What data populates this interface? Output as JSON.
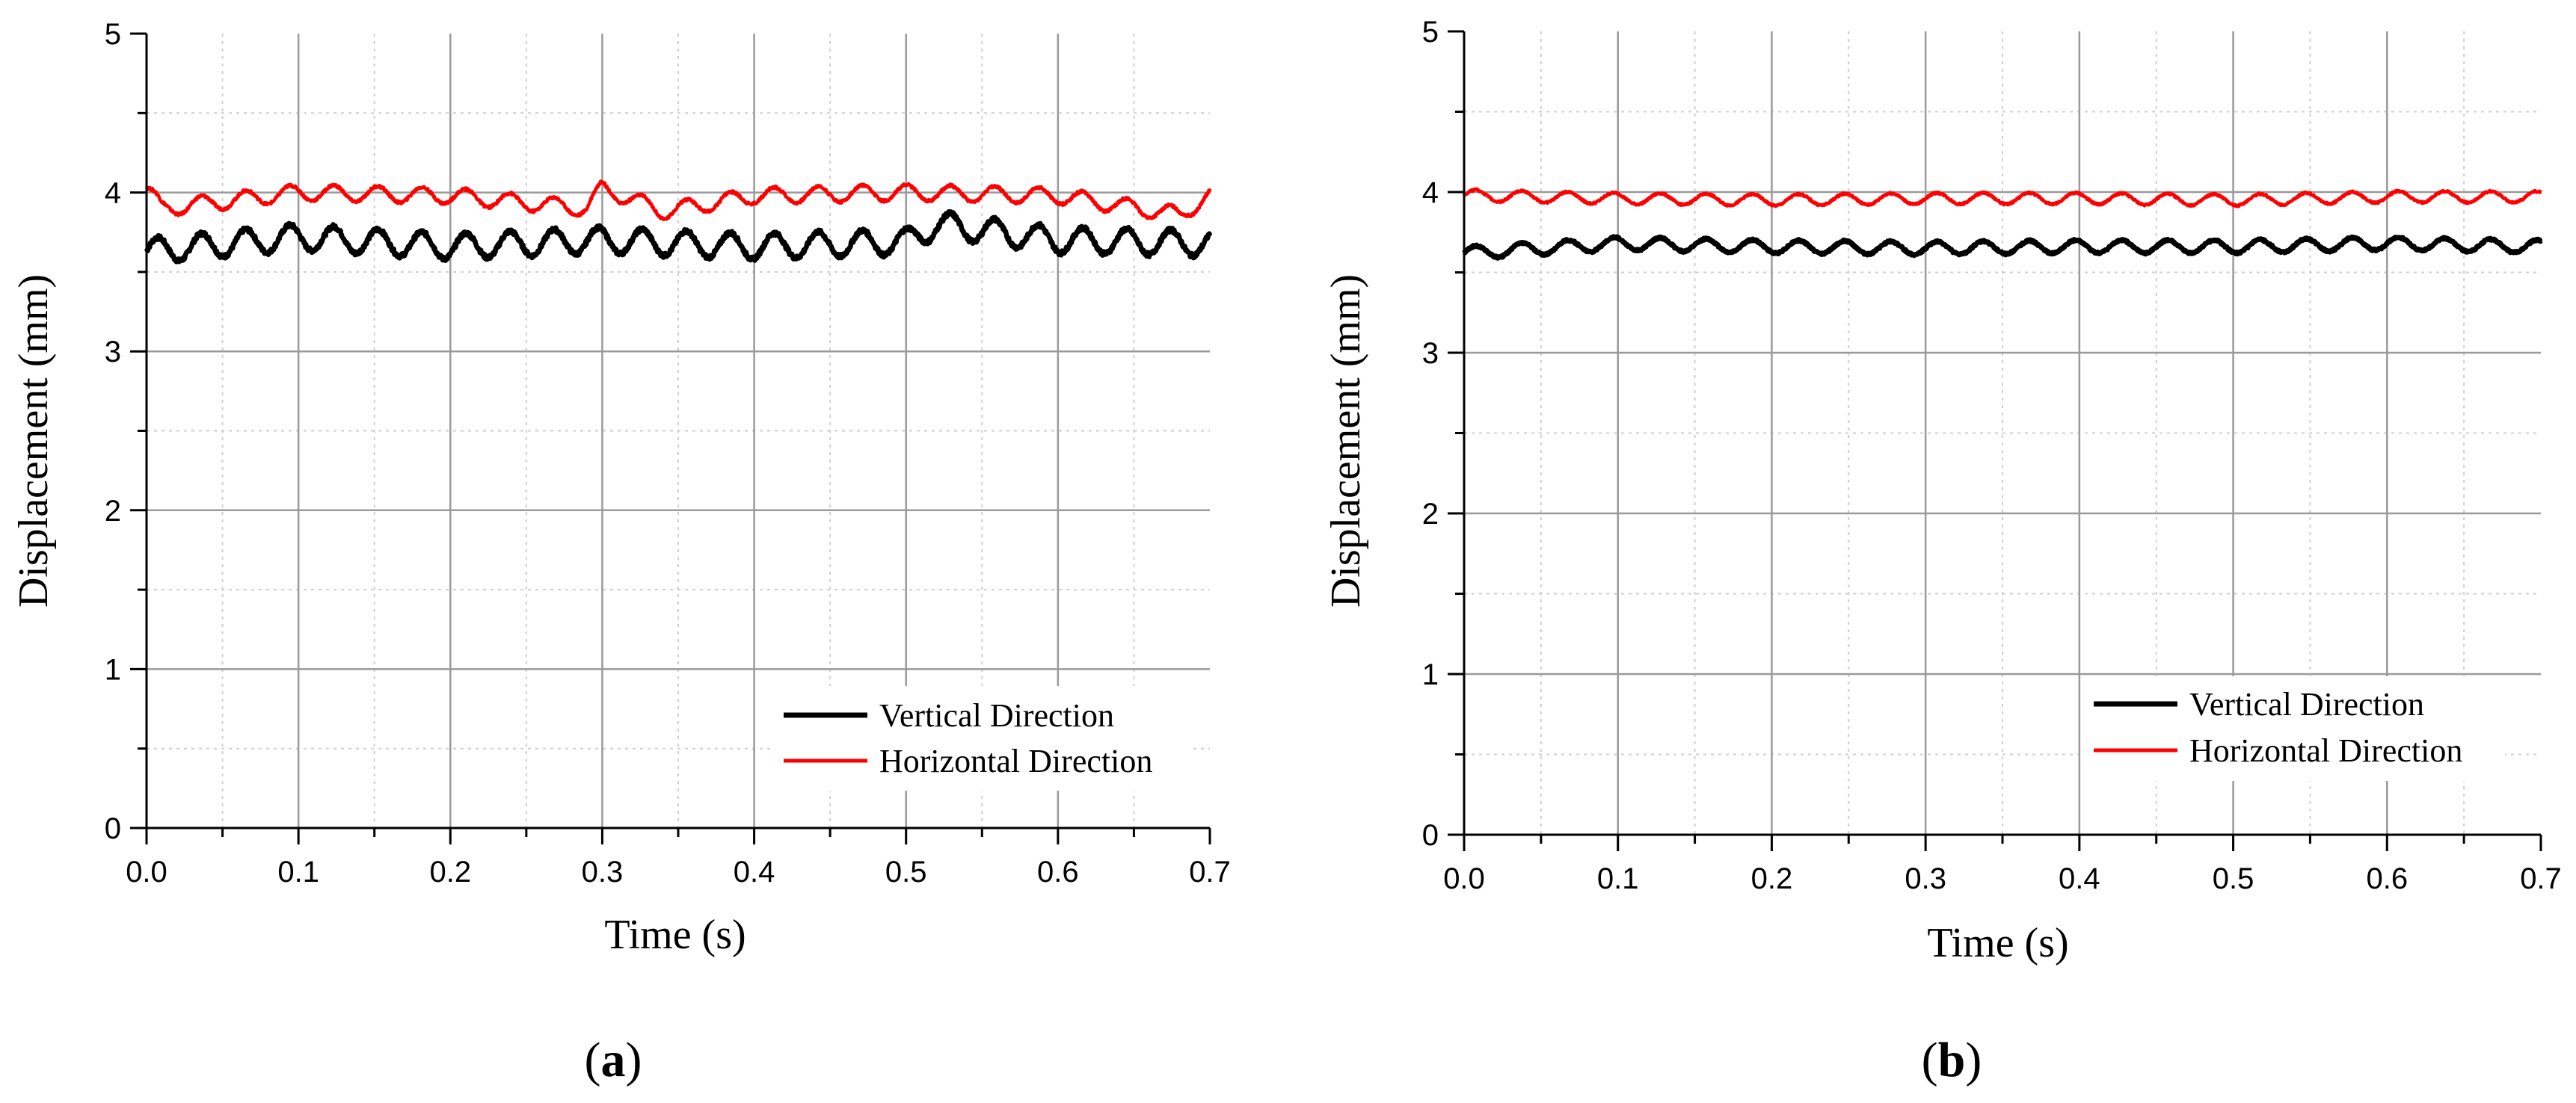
{
  "colors": {
    "vertical": "#000000",
    "horizontal": "#ff0000",
    "grid_major": "#9a9a9a",
    "grid_minor": "#cfcfcf",
    "axis": "#000000"
  },
  "chart_data": [
    {
      "type": "line",
      "panel_label": {
        "open": "(",
        "letter": "a",
        "close": ")"
      },
      "xlabel": "Time (s)",
      "ylabel": "Displacement (mm)",
      "xlim": [
        0,
        0.7
      ],
      "ylim": [
        0,
        5
      ],
      "xticks": [
        "0.0",
        "0.1",
        "0.2",
        "0.3",
        "0.4",
        "0.5",
        "0.6",
        "0.7"
      ],
      "yticks": [
        "0",
        "1",
        "2",
        "3",
        "4",
        "5"
      ],
      "grid": true,
      "legend_position": "bottom-right",
      "series": [
        {
          "name": "Vertical Direction",
          "color": "#000000",
          "mean": 3.67,
          "amplitude": 0.08,
          "period": 0.029,
          "t": [
            0,
            0.1,
            0.2,
            0.3,
            0.4,
            0.5,
            0.52,
            0.6,
            0.7
          ],
          "y": [
            3.63,
            3.72,
            3.66,
            3.7,
            3.66,
            3.69,
            3.8,
            3.7,
            3.68
          ]
        },
        {
          "name": "Horizontal Direction",
          "color": "#ff0000",
          "mean": 3.98,
          "amplitude": 0.05,
          "period": 0.029,
          "t": [
            0,
            0.01,
            0.1,
            0.2,
            0.29,
            0.3,
            0.34,
            0.4,
            0.5,
            0.6,
            0.68,
            0.7
          ],
          "y": [
            4.03,
            3.9,
            4.0,
            3.98,
            3.9,
            4.03,
            3.88,
            3.98,
            4.0,
            3.98,
            3.86,
            3.98
          ]
        }
      ]
    },
    {
      "type": "line",
      "panel_label": {
        "open": "(",
        "letter": "b",
        "close": ")"
      },
      "xlabel": "Time (s)",
      "ylabel": "Displacement (mm)",
      "xlim": [
        0,
        0.7
      ],
      "ylim": [
        0,
        5
      ],
      "xticks": [
        "0.0",
        "0.1",
        "0.2",
        "0.3",
        "0.4",
        "0.5",
        "0.6",
        "0.7"
      ],
      "yticks": [
        "0",
        "1",
        "2",
        "3",
        "4",
        "5"
      ],
      "grid": true,
      "legend_position": "bottom-right",
      "series": [
        {
          "name": "Vertical Direction",
          "color": "#000000",
          "mean": 3.66,
          "amplitude": 0.04,
          "period": 0.03,
          "t": [
            0,
            0.1,
            0.2,
            0.3,
            0.4,
            0.5,
            0.6,
            0.7
          ],
          "y": [
            3.62,
            3.68,
            3.66,
            3.65,
            3.66,
            3.66,
            3.68,
            3.66
          ]
        },
        {
          "name": "Horizontal Direction",
          "color": "#ff0000",
          "mean": 3.97,
          "amplitude": 0.035,
          "period": 0.03,
          "t": [
            0,
            0.1,
            0.2,
            0.3,
            0.4,
            0.5,
            0.6,
            0.7
          ],
          "y": [
            3.98,
            3.96,
            3.95,
            3.96,
            3.96,
            3.95,
            3.97,
            3.97
          ]
        }
      ]
    }
  ]
}
